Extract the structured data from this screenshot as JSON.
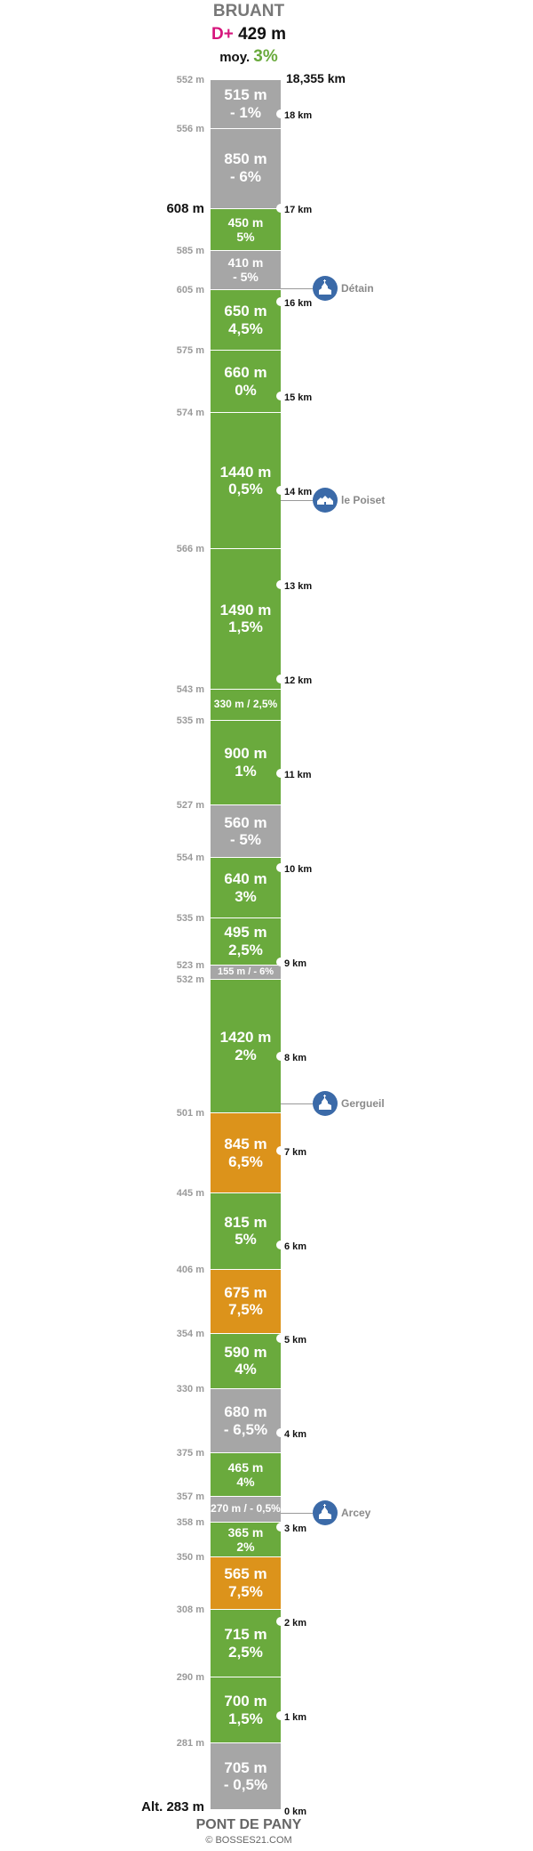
{
  "header": {
    "summit": "BRUANT",
    "dplus_label": "D+",
    "dplus_value": "429 m",
    "avg_label": "moy.",
    "avg_value": "3%"
  },
  "footer": {
    "base": "PONT DE PANY",
    "credit": "© BOSSES21.COM"
  },
  "colors": {
    "green": "#6aaa3d",
    "gray": "#a6a6a6",
    "orange": "#dc931b",
    "accent_magenta": "#d6157c",
    "accent_green": "#6aaa3d",
    "poi_blue": "#3b6aa8"
  },
  "chart_data": {
    "type": "table",
    "total_distance_label": "18,355 km",
    "base_altitude_label": "Alt. 283 m",
    "segments": [
      {
        "line1": "705 m",
        "line2": "- 0,5%",
        "length": 705,
        "grade": -0.5,
        "color": "gray"
      },
      {
        "line1": "700 m",
        "line2": "1,5%",
        "length": 700,
        "grade": 1.5,
        "color": "green"
      },
      {
        "line1": "715 m",
        "line2": "2,5%",
        "length": 715,
        "grade": 2.5,
        "color": "green"
      },
      {
        "line1": "565 m",
        "line2": "7,5%",
        "length": 565,
        "grade": 7.5,
        "color": "orange"
      },
      {
        "line1": "365 m",
        "line2": "2%",
        "length": 365,
        "grade": 2,
        "color": "green"
      },
      {
        "line1": "270 m / - 0,5%",
        "line2": "",
        "length": 270,
        "grade": -0.5,
        "color": "gray"
      },
      {
        "line1": "465 m",
        "line2": "4%",
        "length": 465,
        "grade": 4,
        "color": "green"
      },
      {
        "line1": "680 m",
        "line2": "- 6,5%",
        "length": 680,
        "grade": -6.5,
        "color": "gray"
      },
      {
        "line1": "590 m",
        "line2": "4%",
        "length": 590,
        "grade": 4,
        "color": "green"
      },
      {
        "line1": "675 m",
        "line2": "7,5%",
        "length": 675,
        "grade": 7.5,
        "color": "orange"
      },
      {
        "line1": "815 m",
        "line2": "5%",
        "length": 815,
        "grade": 5,
        "color": "green"
      },
      {
        "line1": "845 m",
        "line2": "6,5%",
        "length": 845,
        "grade": 6.5,
        "color": "orange"
      },
      {
        "line1": "1420 m",
        "line2": "2%",
        "length": 1420,
        "grade": 2,
        "color": "green"
      },
      {
        "line1": "155 m / - 6%",
        "line2": "",
        "length": 155,
        "grade": -6,
        "color": "gray"
      },
      {
        "line1": "495 m",
        "line2": "2,5%",
        "length": 495,
        "grade": 2.5,
        "color": "green"
      },
      {
        "line1": "640 m",
        "line2": "3%",
        "length": 640,
        "grade": 3,
        "color": "green"
      },
      {
        "line1": "560 m",
        "line2": "- 5%",
        "length": 560,
        "grade": -5,
        "color": "gray"
      },
      {
        "line1": "900 m",
        "line2": "1%",
        "length": 900,
        "grade": 1,
        "color": "green"
      },
      {
        "line1": "330 m / 2,5%",
        "line2": "",
        "length": 330,
        "grade": 2.5,
        "color": "green"
      },
      {
        "line1": "1490 m",
        "line2": "1,5%",
        "length": 1490,
        "grade": 1.5,
        "color": "green"
      },
      {
        "line1": "1440 m",
        "line2": "0,5%",
        "length": 1440,
        "grade": 0.5,
        "color": "green"
      },
      {
        "line1": "660 m",
        "line2": "0%",
        "length": 660,
        "grade": 0,
        "color": "green"
      },
      {
        "line1": "650 m",
        "line2": "4,5%",
        "length": 650,
        "grade": 4.5,
        "color": "green"
      },
      {
        "line1": "410 m",
        "line2": "- 5%",
        "length": 410,
        "grade": -5,
        "color": "gray"
      },
      {
        "line1": "450 m",
        "line2": "5%",
        "length": 450,
        "grade": 5,
        "color": "green"
      },
      {
        "line1": "850 m",
        "line2": "- 6%",
        "length": 850,
        "grade": -6,
        "color": "gray"
      },
      {
        "line1": "515 m",
        "line2": "- 1%",
        "length": 515,
        "grade": -1,
        "color": "gray"
      }
    ],
    "altitudes": [
      {
        "label": "281 m",
        "style": "normal"
      },
      {
        "label": "290 m",
        "style": "normal"
      },
      {
        "label": "308 m",
        "style": "normal"
      },
      {
        "label": "350 m",
        "style": "normal"
      },
      {
        "label": "358 m",
        "style": "normal"
      },
      {
        "label": "357 m",
        "style": "normal"
      },
      {
        "label": "375 m",
        "style": "normal"
      },
      {
        "label": "330 m",
        "style": "normal"
      },
      {
        "label": "354 m",
        "style": "normal"
      },
      {
        "label": "406 m",
        "style": "normal"
      },
      {
        "label": "445 m",
        "style": "normal"
      },
      {
        "label": "501 m",
        "style": "normal"
      },
      {
        "label": "532 m",
        "style": "normal"
      },
      {
        "label": "523 m",
        "style": "normal"
      },
      {
        "label": "535 m",
        "style": "normal"
      },
      {
        "label": "554 m",
        "style": "normal"
      },
      {
        "label": "527 m",
        "style": "normal"
      },
      {
        "label": "535 m",
        "style": "normal"
      },
      {
        "label": "543 m",
        "style": "normal"
      },
      {
        "label": "566 m",
        "style": "normal"
      },
      {
        "label": "574 m",
        "style": "normal"
      },
      {
        "label": "575 m",
        "style": "normal"
      },
      {
        "label": "605 m",
        "style": "normal"
      },
      {
        "label": "585 m",
        "style": "normal"
      },
      {
        "label": "608 m",
        "style": "big"
      },
      {
        "label": "556 m",
        "style": "normal"
      },
      {
        "label": "552 m",
        "style": "normal"
      }
    ],
    "km_markers": [
      {
        "label": "0 km",
        "km": 0
      },
      {
        "label": "1 km",
        "km": 1
      },
      {
        "label": "2 km",
        "km": 2
      },
      {
        "label": "3 km",
        "km": 3
      },
      {
        "label": "4 km",
        "km": 4
      },
      {
        "label": "5 km",
        "km": 5
      },
      {
        "label": "6 km",
        "km": 6
      },
      {
        "label": "7 km",
        "km": 7
      },
      {
        "label": "8 km",
        "km": 8
      },
      {
        "label": "9 km",
        "km": 9
      },
      {
        "label": "10 km",
        "km": 10
      },
      {
        "label": "11 km",
        "km": 11
      },
      {
        "label": "12 km",
        "km": 12
      },
      {
        "label": "13 km",
        "km": 13
      },
      {
        "label": "14 km",
        "km": 14
      },
      {
        "label": "15 km",
        "km": 15
      },
      {
        "label": "16 km",
        "km": 16
      },
      {
        "label": "17 km",
        "km": 17
      },
      {
        "label": "18 km",
        "km": 18
      }
    ],
    "places": [
      {
        "name": "Arcey",
        "km": 3.15,
        "icon": "church-icon"
      },
      {
        "name": "Gergueil",
        "km": 7.5,
        "icon": "church-icon"
      },
      {
        "name": "le Poiset",
        "km": 13.9,
        "icon": "houses-icon"
      },
      {
        "name": "Détain",
        "km": 16.15,
        "icon": "church-icon"
      }
    ]
  }
}
